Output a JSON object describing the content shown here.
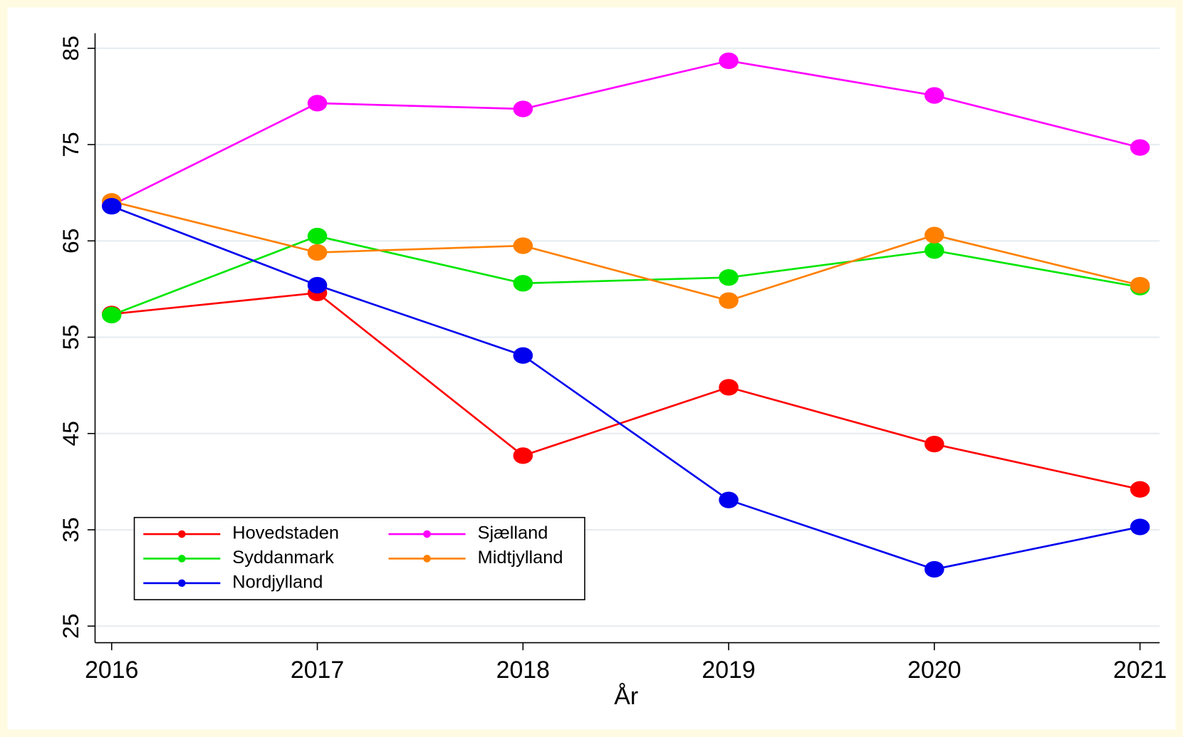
{
  "chart_data": {
    "type": "line",
    "xlabel": "År",
    "x": [
      2016,
      2017,
      2018,
      2019,
      2020,
      2021
    ],
    "xlim": [
      2016,
      2021
    ],
    "xticks": [
      2016,
      2017,
      2018,
      2019,
      2020,
      2021
    ],
    "ylim": [
      25,
      85
    ],
    "yticks": [
      25,
      35,
      45,
      55,
      65,
      75,
      85
    ],
    "grid": true,
    "legend": "lower left",
    "series": [
      {
        "name": "Hovedstaden",
        "color": "#ff0000",
        "values": [
          57.4,
          59.6,
          42.7,
          49.8,
          43.9,
          39.2
        ]
      },
      {
        "name": "Sjælland",
        "color": "#ff00ff",
        "values": [
          68.7,
          79.3,
          78.7,
          83.7,
          80.1,
          74.7
        ]
      },
      {
        "name": "Syddanmark",
        "color": "#00e600",
        "values": [
          57.3,
          65.5,
          60.6,
          61.2,
          64.0,
          60.2
        ]
      },
      {
        "name": "Midtjylland",
        "color": "#ff8000",
        "values": [
          69.1,
          63.8,
          64.5,
          58.8,
          65.6,
          60.4
        ]
      },
      {
        "name": "Nordjylland",
        "color": "#0000ee",
        "values": [
          68.6,
          60.4,
          53.1,
          38.1,
          30.9,
          35.3
        ]
      }
    ]
  }
}
